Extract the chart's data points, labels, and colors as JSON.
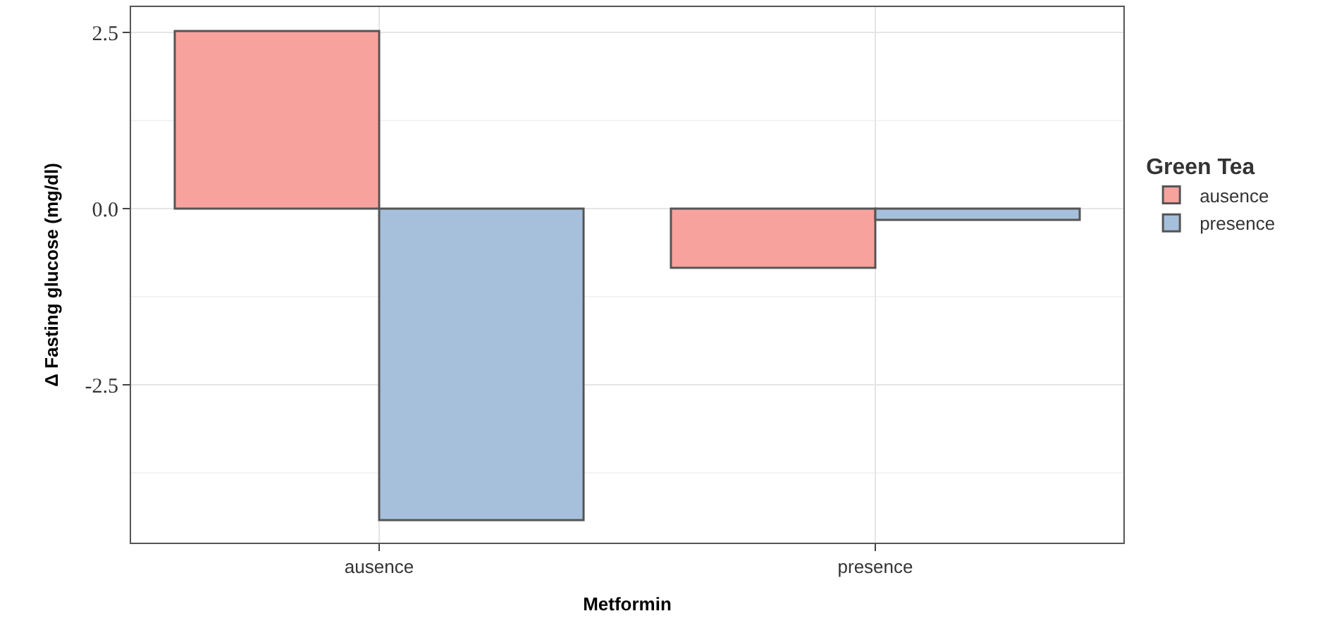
{
  "chart_data": {
    "type": "bar",
    "xlabel": "Metformin",
    "ylabel": "Δ Fasting glucose (mg/dl)",
    "legend_title": "Green Tea",
    "categories": [
      "ausence",
      "presence"
    ],
    "series": [
      {
        "name": "ausence",
        "color": "#f8a29e",
        "values": [
          2.52,
          -0.84
        ]
      },
      {
        "name": "presence",
        "color": "#a6c0dc",
        "values": [
          -4.42,
          -0.16
        ]
      }
    ],
    "ylim": [
      -4.74,
      2.86
    ],
    "yticks": [
      2.5,
      {
        "value": 0,
        "label": "0.0"
      },
      -2.5
    ],
    "grid": true,
    "legend": "right"
  }
}
